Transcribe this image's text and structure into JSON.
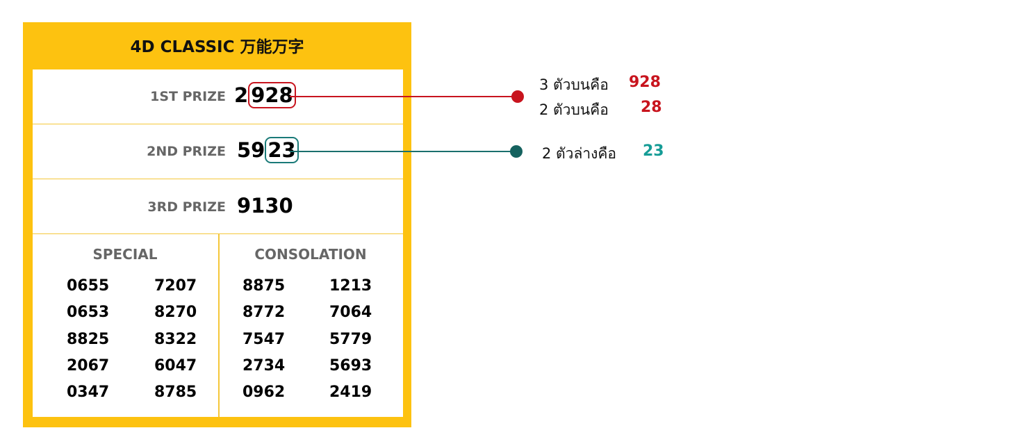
{
  "header": {
    "title": "4D CLASSIC 万能万字"
  },
  "prizes": [
    {
      "label": "1ST PRIZE",
      "number_start": "2",
      "number_highlight": "928"
    },
    {
      "label": "2ND PRIZE",
      "number_start": "59",
      "number_highlight": "23"
    },
    {
      "label": "3RD PRIZE",
      "number_start": "9130"
    }
  ],
  "special": {
    "title": "SPECIAL",
    "rows": [
      [
        "0655",
        "7207"
      ],
      [
        "0653",
        "8270"
      ],
      [
        "8825",
        "8322"
      ],
      [
        "2067",
        "6047"
      ],
      [
        "0347",
        "8785"
      ]
    ]
  },
  "consolation": {
    "title": "CONSOLATION",
    "rows": [
      [
        "8875",
        "1213"
      ],
      [
        "8772",
        "7064"
      ],
      [
        "7547",
        "5779"
      ],
      [
        "2734",
        "5693"
      ],
      [
        "0962",
        "2419"
      ]
    ]
  },
  "annotations": [
    {
      "label": "3 ตัวบนคือ",
      "value": "928"
    },
    {
      "label": "2 ตัวบนคือ",
      "value": "28"
    },
    {
      "label": "2 ตัวล่างคือ",
      "value": "23"
    }
  ]
}
